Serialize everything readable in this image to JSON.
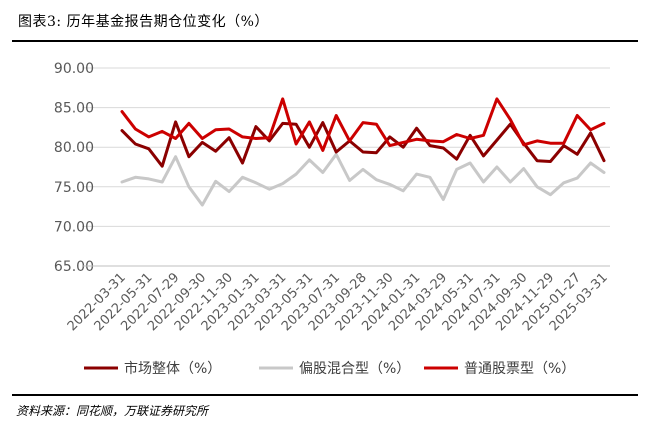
{
  "figure": {
    "title": "图表3:  历年基金报告期仓位变化（%）",
    "source": "资料来源：同花顺，万联证券研究所"
  },
  "chart_data": {
    "type": "line",
    "x": [
      "2022-03-31",
      "2022-04-30",
      "2022-05-31",
      "2022-06-30",
      "2022-07-29",
      "2022-08-31",
      "2022-09-30",
      "2022-10-31",
      "2022-11-30",
      "2022-12-30",
      "2023-01-31",
      "2023-02-28",
      "2023-03-31",
      "2023-04-28",
      "2023-05-31",
      "2023-06-30",
      "2023-07-31",
      "2023-08-31",
      "2023-09-28",
      "2023-10-31",
      "2023-11-30",
      "2023-12-29",
      "2024-01-31",
      "2024-02-29",
      "2024-03-29",
      "2024-04-30",
      "2024-05-31",
      "2024-06-28",
      "2024-07-31",
      "2024-08-30",
      "2024-09-30",
      "2024-10-31",
      "2024-11-29",
      "2024-12-31",
      "2025-01-27",
      "2025-02-28",
      "2025-03-31"
    ],
    "xticks": [
      "2022-03-31",
      "2022-05-31",
      "2022-07-29",
      "2022-09-30",
      "2022-11-30",
      "2023-01-31",
      "2023-03-31",
      "2023-05-31",
      "2023-07-31",
      "2023-09-28",
      "2023-11-30",
      "2024-01-31",
      "2024-03-29",
      "2024-05-31",
      "2024-07-31",
      "2024-09-30",
      "2024-11-29",
      "2025-01-27",
      "2025-03-31"
    ],
    "ylim": [
      65,
      90
    ],
    "yticks": [
      "90.00",
      "85.00",
      "80.00",
      "75.00",
      "70.00",
      "65.00"
    ],
    "grid": "horizontal",
    "legend_position": "bottom",
    "series": [
      {
        "name": "市场整体（%）",
        "color": "#8B0000",
        "values": [
          82.1,
          80.4,
          79.8,
          77.6,
          83.2,
          78.8,
          80.6,
          79.5,
          81.2,
          78.0,
          82.6,
          80.8,
          83.0,
          82.9,
          80.0,
          83.1,
          79.4,
          80.8,
          79.4,
          79.3,
          81.3,
          80.0,
          82.4,
          80.2,
          79.9,
          78.5,
          81.5,
          78.9,
          80.9,
          82.9,
          80.5,
          78.3,
          78.2,
          80.2,
          79.1,
          81.8,
          78.3
        ]
      },
      {
        "name": "偏股混合型（%）",
        "color": "#C8C8C8",
        "values": [
          75.6,
          76.2,
          76.0,
          75.6,
          78.8,
          75.0,
          72.7,
          75.7,
          74.4,
          76.2,
          75.5,
          74.7,
          75.4,
          76.6,
          78.4,
          76.8,
          79.1,
          75.8,
          77.2,
          75.9,
          75.3,
          74.5,
          76.6,
          76.2,
          73.4,
          77.2,
          78.0,
          75.6,
          77.5,
          75.6,
          77.3,
          75.0,
          74.0,
          75.5,
          76.1,
          78.0,
          76.8
        ]
      },
      {
        "name": "普通股票型（%）",
        "color": "#CC0000",
        "values": [
          84.5,
          82.3,
          81.3,
          82.0,
          81.1,
          83.0,
          81.1,
          82.2,
          82.3,
          81.3,
          81.1,
          81.2,
          86.1,
          80.4,
          83.2,
          79.6,
          84.0,
          80.8,
          83.1,
          82.9,
          80.2,
          80.6,
          81.0,
          80.8,
          80.7,
          81.6,
          81.1,
          81.5,
          86.1,
          83.5,
          80.3,
          80.8,
          80.5,
          80.5,
          84.0,
          82.2,
          83.0
        ]
      }
    ]
  }
}
